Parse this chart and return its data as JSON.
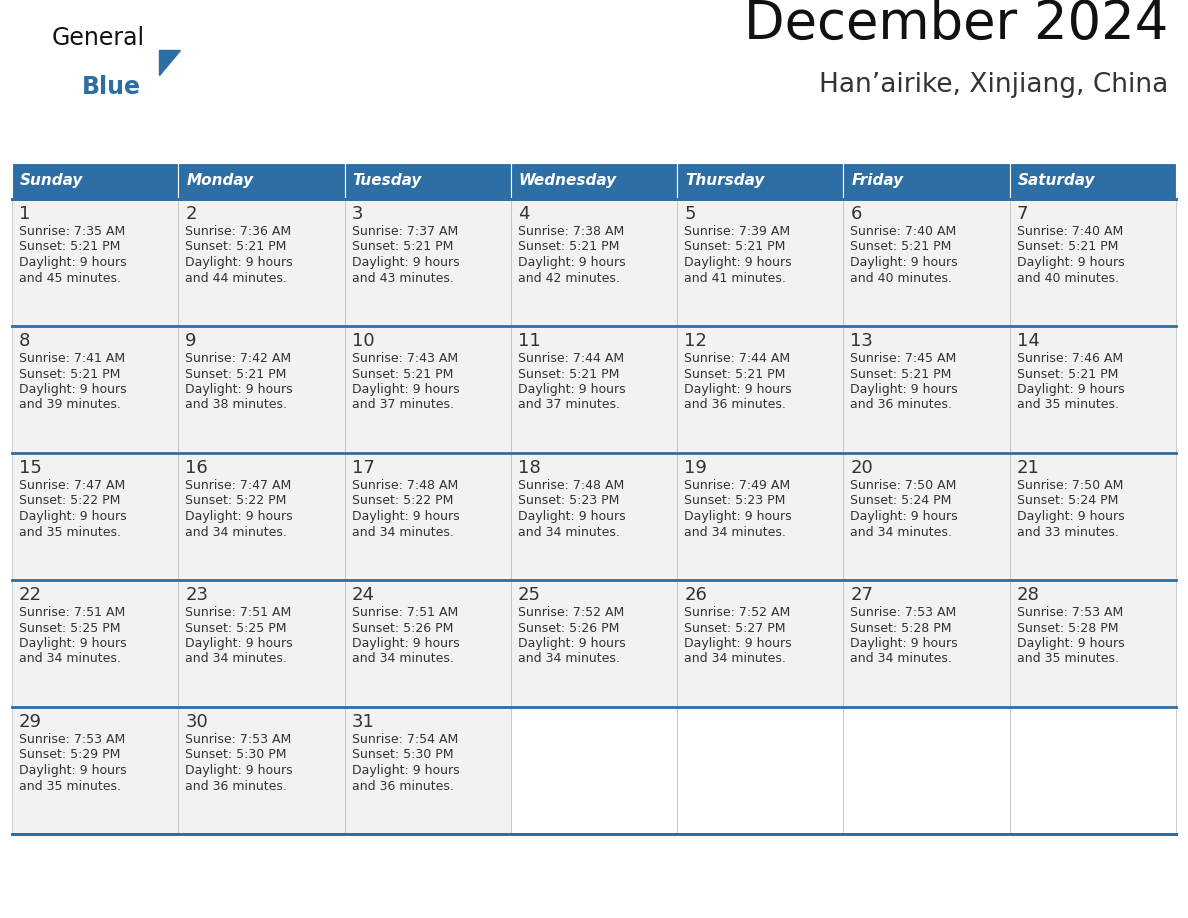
{
  "title": "December 2024",
  "subtitle": "Han’airike, Xinjiang, China",
  "days_of_week": [
    "Sunday",
    "Monday",
    "Tuesday",
    "Wednesday",
    "Thursday",
    "Friday",
    "Saturday"
  ],
  "header_bg": "#2D6EA5",
  "header_text": "#FFFFFF",
  "cell_bg": "#F2F2F2",
  "cell_bg_empty": "#FFFFFF",
  "day_num_color": "#333333",
  "text_color": "#333333",
  "border_color": "#2D6EA5",
  "inner_border_color": "#BBBBBB",
  "title_color": "#111111",
  "subtitle_color": "#333333",
  "logo_general_color": "#111111",
  "logo_blue_color": "#2D6EA5",
  "logo_triangle_color": "#2D6EA5",
  "weeks": [
    [
      {
        "day": 1,
        "sunrise": "7:35 AM",
        "sunset": "5:21 PM",
        "daylight_h": "9 hours",
        "daylight_m": "and 45 minutes."
      },
      {
        "day": 2,
        "sunrise": "7:36 AM",
        "sunset": "5:21 PM",
        "daylight_h": "9 hours",
        "daylight_m": "and 44 minutes."
      },
      {
        "day": 3,
        "sunrise": "7:37 AM",
        "sunset": "5:21 PM",
        "daylight_h": "9 hours",
        "daylight_m": "and 43 minutes."
      },
      {
        "day": 4,
        "sunrise": "7:38 AM",
        "sunset": "5:21 PM",
        "daylight_h": "9 hours",
        "daylight_m": "and 42 minutes."
      },
      {
        "day": 5,
        "sunrise": "7:39 AM",
        "sunset": "5:21 PM",
        "daylight_h": "9 hours",
        "daylight_m": "and 41 minutes."
      },
      {
        "day": 6,
        "sunrise": "7:40 AM",
        "sunset": "5:21 PM",
        "daylight_h": "9 hours",
        "daylight_m": "and 40 minutes."
      },
      {
        "day": 7,
        "sunrise": "7:40 AM",
        "sunset": "5:21 PM",
        "daylight_h": "9 hours",
        "daylight_m": "and 40 minutes."
      }
    ],
    [
      {
        "day": 8,
        "sunrise": "7:41 AM",
        "sunset": "5:21 PM",
        "daylight_h": "9 hours",
        "daylight_m": "and 39 minutes."
      },
      {
        "day": 9,
        "sunrise": "7:42 AM",
        "sunset": "5:21 PM",
        "daylight_h": "9 hours",
        "daylight_m": "and 38 minutes."
      },
      {
        "day": 10,
        "sunrise": "7:43 AM",
        "sunset": "5:21 PM",
        "daylight_h": "9 hours",
        "daylight_m": "and 37 minutes."
      },
      {
        "day": 11,
        "sunrise": "7:44 AM",
        "sunset": "5:21 PM",
        "daylight_h": "9 hours",
        "daylight_m": "and 37 minutes."
      },
      {
        "day": 12,
        "sunrise": "7:44 AM",
        "sunset": "5:21 PM",
        "daylight_h": "9 hours",
        "daylight_m": "and 36 minutes."
      },
      {
        "day": 13,
        "sunrise": "7:45 AM",
        "sunset": "5:21 PM",
        "daylight_h": "9 hours",
        "daylight_m": "and 36 minutes."
      },
      {
        "day": 14,
        "sunrise": "7:46 AM",
        "sunset": "5:21 PM",
        "daylight_h": "9 hours",
        "daylight_m": "and 35 minutes."
      }
    ],
    [
      {
        "day": 15,
        "sunrise": "7:47 AM",
        "sunset": "5:22 PM",
        "daylight_h": "9 hours",
        "daylight_m": "and 35 minutes."
      },
      {
        "day": 16,
        "sunrise": "7:47 AM",
        "sunset": "5:22 PM",
        "daylight_h": "9 hours",
        "daylight_m": "and 34 minutes."
      },
      {
        "day": 17,
        "sunrise": "7:48 AM",
        "sunset": "5:22 PM",
        "daylight_h": "9 hours",
        "daylight_m": "and 34 minutes."
      },
      {
        "day": 18,
        "sunrise": "7:48 AM",
        "sunset": "5:23 PM",
        "daylight_h": "9 hours",
        "daylight_m": "and 34 minutes."
      },
      {
        "day": 19,
        "sunrise": "7:49 AM",
        "sunset": "5:23 PM",
        "daylight_h": "9 hours",
        "daylight_m": "and 34 minutes."
      },
      {
        "day": 20,
        "sunrise": "7:50 AM",
        "sunset": "5:24 PM",
        "daylight_h": "9 hours",
        "daylight_m": "and 34 minutes."
      },
      {
        "day": 21,
        "sunrise": "7:50 AM",
        "sunset": "5:24 PM",
        "daylight_h": "9 hours",
        "daylight_m": "and 33 minutes."
      }
    ],
    [
      {
        "day": 22,
        "sunrise": "7:51 AM",
        "sunset": "5:25 PM",
        "daylight_h": "9 hours",
        "daylight_m": "and 34 minutes."
      },
      {
        "day": 23,
        "sunrise": "7:51 AM",
        "sunset": "5:25 PM",
        "daylight_h": "9 hours",
        "daylight_m": "and 34 minutes."
      },
      {
        "day": 24,
        "sunrise": "7:51 AM",
        "sunset": "5:26 PM",
        "daylight_h": "9 hours",
        "daylight_m": "and 34 minutes."
      },
      {
        "day": 25,
        "sunrise": "7:52 AM",
        "sunset": "5:26 PM",
        "daylight_h": "9 hours",
        "daylight_m": "and 34 minutes."
      },
      {
        "day": 26,
        "sunrise": "7:52 AM",
        "sunset": "5:27 PM",
        "daylight_h": "9 hours",
        "daylight_m": "and 34 minutes."
      },
      {
        "day": 27,
        "sunrise": "7:53 AM",
        "sunset": "5:28 PM",
        "daylight_h": "9 hours",
        "daylight_m": "and 34 minutes."
      },
      {
        "day": 28,
        "sunrise": "7:53 AM",
        "sunset": "5:28 PM",
        "daylight_h": "9 hours",
        "daylight_m": "and 35 minutes."
      }
    ],
    [
      {
        "day": 29,
        "sunrise": "7:53 AM",
        "sunset": "5:29 PM",
        "daylight_h": "9 hours",
        "daylight_m": "and 35 minutes."
      },
      {
        "day": 30,
        "sunrise": "7:53 AM",
        "sunset": "5:30 PM",
        "daylight_h": "9 hours",
        "daylight_m": "and 36 minutes."
      },
      {
        "day": 31,
        "sunrise": "7:54 AM",
        "sunset": "5:30 PM",
        "daylight_h": "9 hours",
        "daylight_m": "and 36 minutes."
      },
      null,
      null,
      null,
      null
    ]
  ]
}
